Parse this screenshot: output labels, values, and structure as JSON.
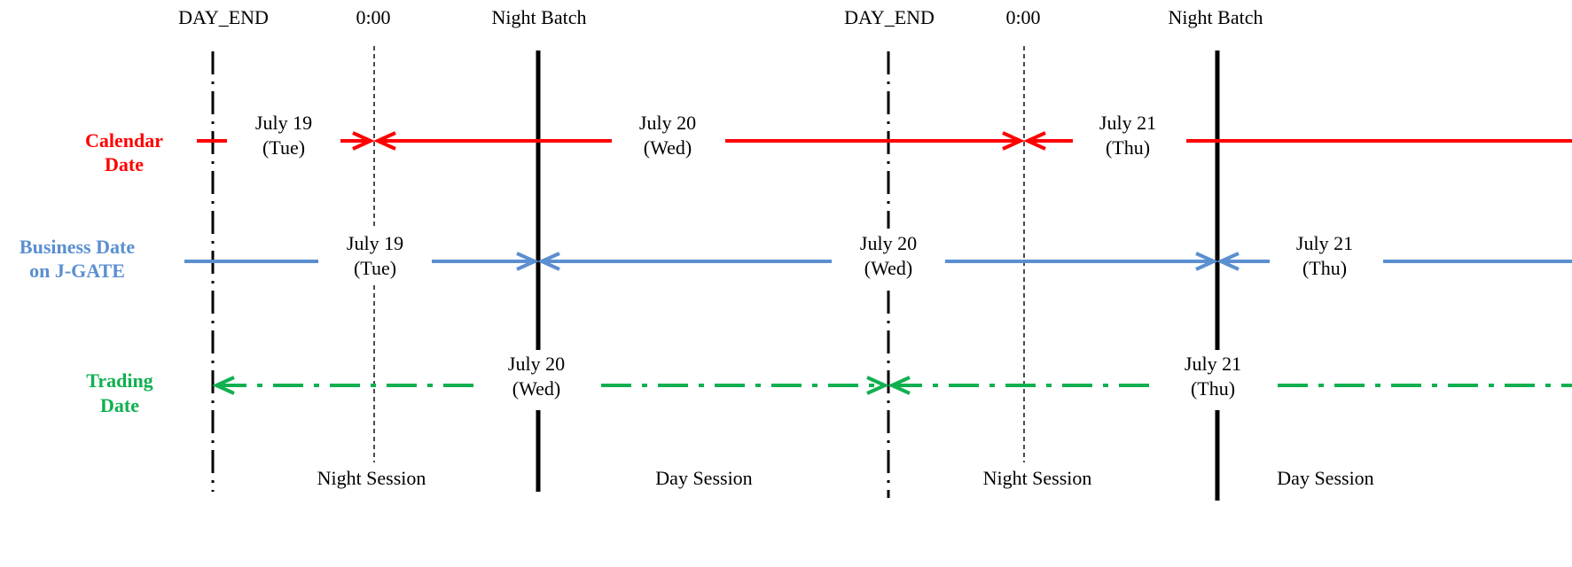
{
  "markers": {
    "day_end_1": "DAY_END",
    "midnight_1": "0:00",
    "night_batch_1": "Night Batch",
    "day_end_2": "DAY_END",
    "midnight_2": "0:00",
    "night_batch_2": "Night Batch"
  },
  "rows": {
    "calendar": {
      "label_line1": "Calendar",
      "label_line2": "Date",
      "color": "#ff0000"
    },
    "business": {
      "label_line1": "Business Date",
      "label_line2": "on J-GATE",
      "color": "#5b8fd0"
    },
    "trading": {
      "label_line1": "Trading",
      "label_line2": "Date",
      "color": "#10b050"
    }
  },
  "dates": {
    "cal_1": {
      "d": "July 19",
      "w": "(Tue)"
    },
    "cal_2": {
      "d": "July 20",
      "w": "(Wed)"
    },
    "cal_3": {
      "d": "July 21",
      "w": "(Thu)"
    },
    "biz_1": {
      "d": "July 19",
      "w": "(Tue)"
    },
    "biz_2": {
      "d": "July 20",
      "w": "(Wed)"
    },
    "biz_3": {
      "d": "July 21",
      "w": "(Thu)"
    },
    "trd_1": {
      "d": "July 20",
      "w": "(Wed)"
    },
    "trd_2": {
      "d": "July 21",
      "w": "(Thu)"
    }
  },
  "sessions": {
    "night_1": "Night Session",
    "day_1": "Day Session",
    "night_2": "Night Session",
    "day_2": "Day Session"
  }
}
